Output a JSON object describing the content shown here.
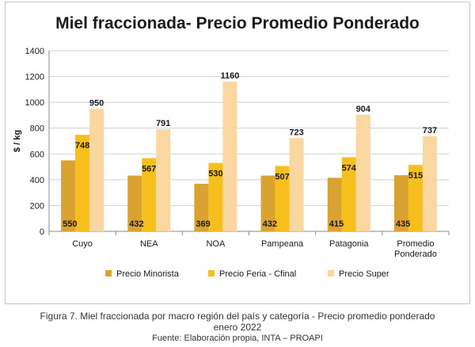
{
  "caption": {
    "line1": "Figura 7. Miel fraccionada por macro región del país y categoría - Precio promedio ponderado",
    "line2": "enero 2022",
    "source": "Fuente: Elaboración propia, INTA – PROAPI"
  },
  "chart_data": {
    "type": "bar",
    "title": "Miel fraccionada- Precio Promedio Ponderado",
    "xlabel": "",
    "ylabel": "$ / kg",
    "ylim": [
      0,
      1400
    ],
    "yticks": [
      0,
      200,
      400,
      600,
      800,
      1000,
      1200,
      1400
    ],
    "grid": true,
    "legend": "bottom",
    "categories": [
      [
        "Cuyo"
      ],
      [
        "NEA"
      ],
      [
        "NOA"
      ],
      [
        "Pampeana"
      ],
      [
        "Patagonia"
      ],
      [
        "Promedio",
        "Ponderado"
      ]
    ],
    "series": [
      {
        "name": "Precio Minorista",
        "color": "#d9a231",
        "values": [
          550,
          432,
          369,
          432,
          415,
          435
        ]
      },
      {
        "name": "Precio Feria - Cfinal",
        "color": "#f6bf1e",
        "values": [
          748,
          567,
          530,
          507,
          574,
          515
        ]
      },
      {
        "name": "Precio Super",
        "color": "#fad7a0",
        "values": [
          950,
          791,
          1160,
          723,
          904,
          737
        ]
      }
    ]
  }
}
